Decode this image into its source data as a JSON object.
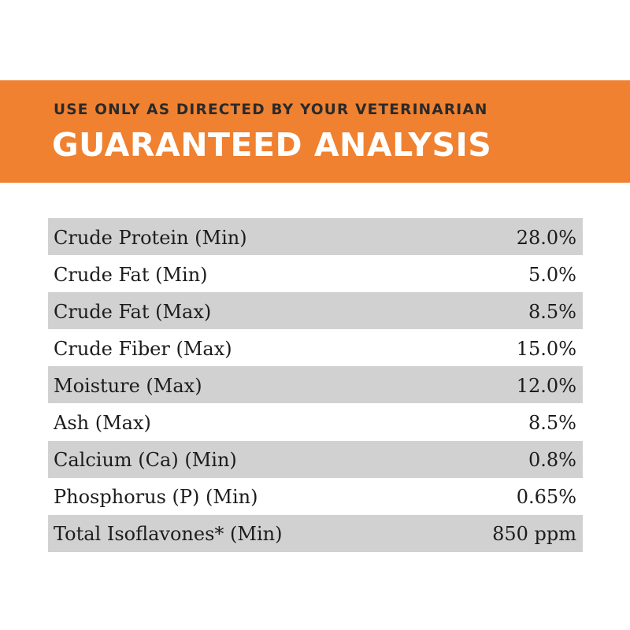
{
  "header": {
    "subtitle": "USE ONLY AS DIRECTED BY YOUR VETERINARIAN",
    "title": "GUARANTEED ANALYSIS"
  },
  "colors": {
    "banner": "#f08130",
    "row_shade": "#d1d1d1",
    "title_text": "#ffffff",
    "subtitle_text": "#2a2a2a"
  },
  "rows": [
    {
      "label": "Crude Protein (Min)",
      "value": "28.0%"
    },
    {
      "label": "Crude Fat (Min)",
      "value": "5.0%"
    },
    {
      "label": "Crude Fat (Max)",
      "value": "8.5%"
    },
    {
      "label": "Crude Fiber (Max)",
      "value": "15.0%"
    },
    {
      "label": "Moisture (Max)",
      "value": "12.0%"
    },
    {
      "label": "Ash (Max)",
      "value": "8.5%"
    },
    {
      "label": "Calcium (Ca) (Min)",
      "value": "0.8%"
    },
    {
      "label": "Phosphorus (P) (Min)",
      "value": "0.65%"
    },
    {
      "label": "Total Isoflavones* (Min)",
      "value": "850 ppm"
    }
  ]
}
